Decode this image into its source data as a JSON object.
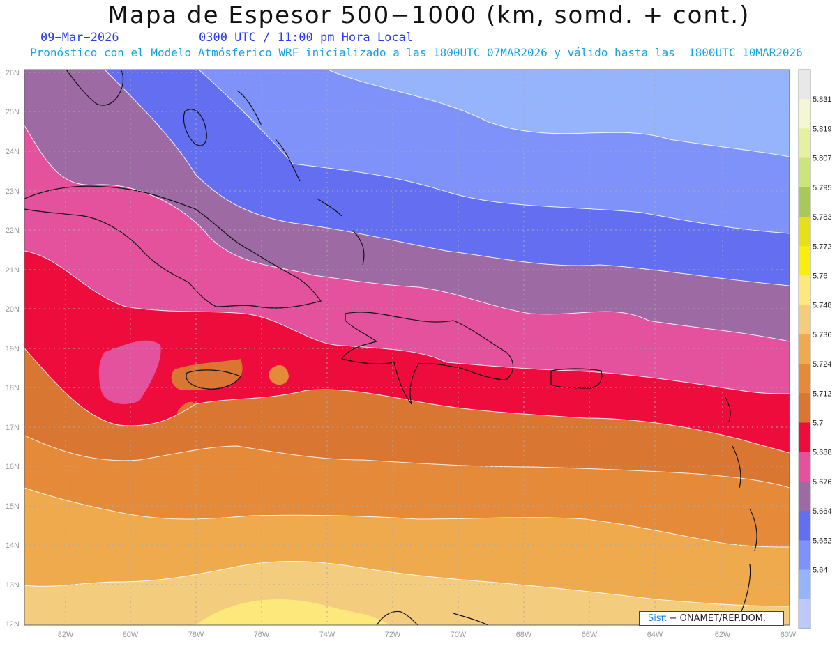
{
  "header": {
    "title": "Mapa de Espesor 500−1000 (km, somd. + cont.)",
    "date": "09−Mar−2026",
    "utc": "0300 UTC / 11:00 pm Hora Local",
    "subtitle": "Pronóstico con el Modelo Atmósferico WRF inicializado a las 1800UTC_07MAR2026 y válido hasta las  1800UTC_10MAR2026"
  },
  "map": {
    "lat_labels": [
      "26N",
      "25N",
      "24N",
      "23N",
      "22N",
      "21N",
      "20N",
      "19N",
      "18N",
      "17N",
      "16N",
      "15N",
      "14N",
      "13N",
      "12N"
    ],
    "lon_labels": [
      "82W",
      "80W",
      "78W",
      "76W",
      "74W",
      "72W",
      "70W",
      "68W",
      "66W",
      "64W",
      "62W",
      "60W"
    ],
    "grid": true,
    "gridline_color": "#aaaaaa"
  },
  "legend": {
    "levels": [
      "5.831",
      "5.819",
      "5.807",
      "5.795",
      "5.783",
      "5.772",
      "5.76",
      "5.748",
      "5.736",
      "5.724",
      "5.712",
      "5.7",
      "5.688",
      "5.676",
      "5.664",
      "5.652",
      "5.64"
    ],
    "colors": [
      "#e8e8e8",
      "#f4f6d4",
      "#e6f1a0",
      "#c9e57c",
      "#a8c95a",
      "#e5e01a",
      "#f9ee10",
      "#fde87c",
      "#f3cc7e",
      "#eeaa4c",
      "#e48a38",
      "#d87632",
      "#ee0c3c",
      "#e4519c",
      "#9e6aa4",
      "#636ef0",
      "#7e92fa",
      "#96b4fc",
      "#bcc8fe"
    ]
  },
  "credit": {
    "sis": "Sisπ",
    "rest": "− ONAMET/REP.DOM."
  }
}
